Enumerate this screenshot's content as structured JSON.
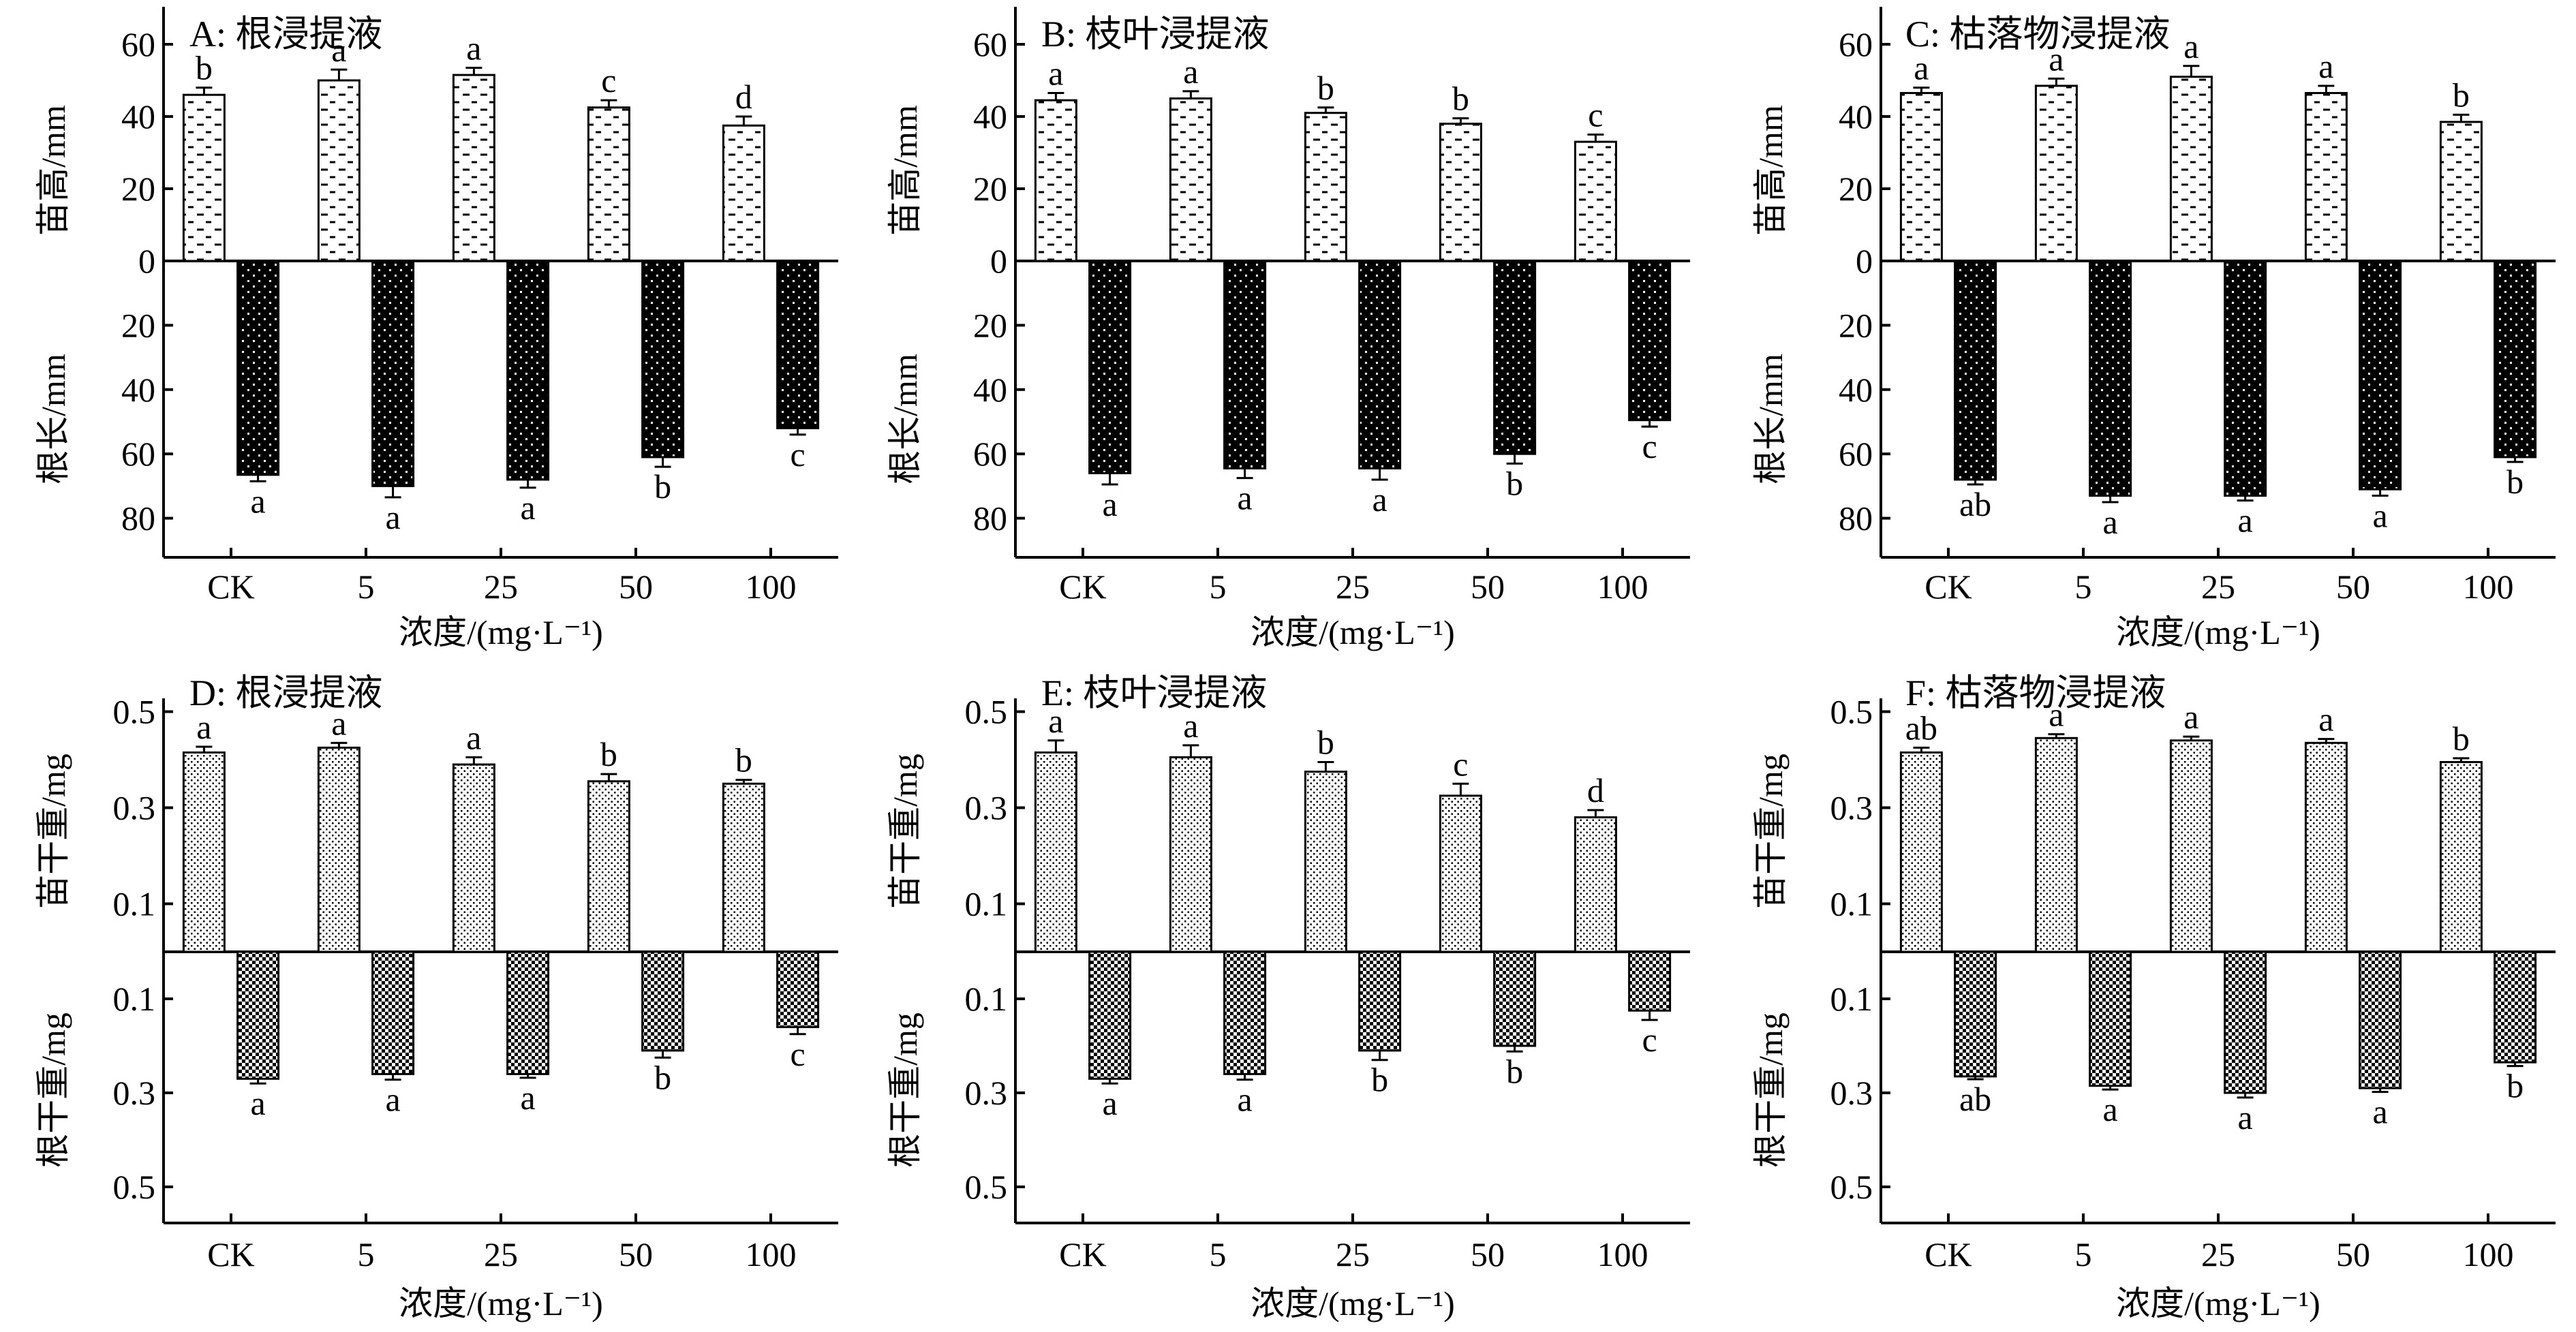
{
  "figure": {
    "categories": [
      "CK",
      "5",
      "25",
      "50",
      "100"
    ],
    "xlabel": "浓度/(mg·L⁻¹)"
  },
  "chart_data": [
    {
      "id": "A",
      "type": "bar",
      "title": "A: 根浸提液",
      "row": "length",
      "categories": [
        "CK",
        "5",
        "25",
        "50",
        "100"
      ],
      "xlabel": "浓度/(mg·L⁻¹)",
      "top": {
        "ylabel": "苗高/mm",
        "values": [
          46,
          50,
          51.5,
          42.5,
          37.5
        ],
        "errors": [
          2,
          3,
          2,
          2,
          2.5
        ],
        "letters": [
          "b",
          "a",
          "a",
          "c",
          "d"
        ],
        "ticks": [
          0,
          20,
          40,
          60
        ],
        "ylim": [
          0,
          70
        ]
      },
      "bottom": {
        "ylabel": "根长/mm",
        "values": [
          66.5,
          70,
          68,
          61,
          52
        ],
        "errors": [
          2,
          3.5,
          2.5,
          3,
          2
        ],
        "letters": [
          "a",
          "a",
          "a",
          "b",
          "c"
        ],
        "ticks": [
          20,
          40,
          60,
          80
        ],
        "ylim": [
          0,
          90
        ]
      }
    },
    {
      "id": "B",
      "type": "bar",
      "title": "B: 枝叶浸提液",
      "row": "length",
      "categories": [
        "CK",
        "5",
        "25",
        "50",
        "100"
      ],
      "xlabel": "浓度/(mg·L⁻¹)",
      "top": {
        "ylabel": "苗高/mm",
        "values": [
          44.5,
          45,
          41,
          38,
          33
        ],
        "errors": [
          2,
          2,
          1.5,
          1.5,
          2
        ],
        "letters": [
          "a",
          "a",
          "b",
          "b",
          "c"
        ],
        "ticks": [
          0,
          20,
          40,
          60
        ],
        "ylim": [
          0,
          70
        ]
      },
      "bottom": {
        "ylabel": "根长/mm",
        "values": [
          66,
          64.5,
          64.5,
          60,
          49.5
        ],
        "errors": [
          3.5,
          3,
          3.5,
          3,
          2
        ],
        "letters": [
          "a",
          "a",
          "a",
          "b",
          "c"
        ],
        "ticks": [
          20,
          40,
          60,
          80
        ],
        "ylim": [
          0,
          90
        ]
      }
    },
    {
      "id": "C",
      "type": "bar",
      "title": "C: 枯落物浸提液",
      "row": "length",
      "categories": [
        "CK",
        "5",
        "25",
        "50",
        "100"
      ],
      "xlabel": "浓度/(mg·L⁻¹)",
      "top": {
        "ylabel": "苗高/mm",
        "values": [
          46.5,
          48.5,
          51,
          46.5,
          38.5
        ],
        "errors": [
          1.5,
          2,
          3,
          2,
          2
        ],
        "letters": [
          "a",
          "a",
          "a",
          "a",
          "b"
        ],
        "ticks": [
          0,
          20,
          40,
          60
        ],
        "ylim": [
          0,
          70
        ]
      },
      "bottom": {
        "ylabel": "根长/mm",
        "values": [
          68,
          73,
          73,
          71,
          61
        ],
        "errors": [
          1.5,
          2,
          1.5,
          2,
          1.5
        ],
        "letters": [
          "ab",
          "a",
          "a",
          "a",
          "b"
        ],
        "ticks": [
          20,
          40,
          60,
          80
        ],
        "ylim": [
          0,
          90
        ]
      }
    },
    {
      "id": "D",
      "type": "bar",
      "title": "D: 根浸提液",
      "row": "weight",
      "categories": [
        "CK",
        "5",
        "25",
        "50",
        "100"
      ],
      "xlabel": "浓度/(mg·L⁻¹)",
      "top": {
        "ylabel": "苗干重/mg",
        "values": [
          0.415,
          0.425,
          0.39,
          0.355,
          0.35
        ],
        "errors": [
          0.012,
          0.01,
          0.015,
          0.015,
          0.008
        ],
        "letters": [
          "a",
          "a",
          "a",
          "b",
          "b"
        ],
        "ticks": [
          0.1,
          0.3,
          0.5
        ],
        "tick_labels": [
          "0.1",
          "0.3",
          "0.5"
        ],
        "ylim": [
          0,
          0.55
        ]
      },
      "bottom": {
        "ylabel": "根干重/mg",
        "values": [
          0.27,
          0.26,
          0.26,
          0.21,
          0.16
        ],
        "errors": [
          0.01,
          0.012,
          0.008,
          0.015,
          0.015
        ],
        "letters": [
          "a",
          "a",
          "a",
          "b",
          "c"
        ],
        "ticks": [
          0.1,
          0.3,
          0.5
        ],
        "tick_labels": [
          "0.1",
          "0.3",
          "0.5"
        ],
        "ylim": [
          0,
          0.55
        ]
      }
    },
    {
      "id": "E",
      "type": "bar",
      "title": "E: 枝叶浸提液",
      "row": "weight",
      "categories": [
        "CK",
        "5",
        "25",
        "50",
        "100"
      ],
      "xlabel": "浓度/(mg·L⁻¹)",
      "top": {
        "ylabel": "苗干重/mg",
        "values": [
          0.415,
          0.405,
          0.375,
          0.325,
          0.28
        ],
        "errors": [
          0.025,
          0.025,
          0.02,
          0.025,
          0.015
        ],
        "letters": [
          "a",
          "a",
          "b",
          "c",
          "d"
        ],
        "ticks": [
          0.1,
          0.3,
          0.5
        ],
        "tick_labels": [
          "0.1",
          "0.3",
          "0.5"
        ],
        "ylim": [
          0,
          0.55
        ]
      },
      "bottom": {
        "ylabel": "根干重/mg",
        "values": [
          0.27,
          0.26,
          0.21,
          0.2,
          0.125
        ],
        "errors": [
          0.01,
          0.012,
          0.02,
          0.012,
          0.02
        ],
        "letters": [
          "a",
          "a",
          "b",
          "b",
          "c"
        ],
        "ticks": [
          0.1,
          0.3,
          0.5
        ],
        "tick_labels": [
          "0.1",
          "0.3",
          "0.5"
        ],
        "ylim": [
          0,
          0.55
        ]
      }
    },
    {
      "id": "F",
      "type": "bar",
      "title": "F: 枯落物浸提液",
      "row": "weight",
      "categories": [
        "CK",
        "5",
        "25",
        "50",
        "100"
      ],
      "xlabel": "浓度/(mg·L⁻¹)",
      "top": {
        "ylabel": "苗干重/mg",
        "values": [
          0.415,
          0.445,
          0.44,
          0.435,
          0.395
        ],
        "errors": [
          0.01,
          0.008,
          0.008,
          0.008,
          0.008
        ],
        "letters": [
          "ab",
          "a",
          "a",
          "a",
          "b"
        ],
        "ticks": [
          0.1,
          0.3,
          0.5
        ],
        "tick_labels": [
          "0.1",
          "0.3",
          "0.5"
        ],
        "ylim": [
          0,
          0.55
        ]
      },
      "bottom": {
        "ylabel": "根干重/mg",
        "values": [
          0.265,
          0.285,
          0.3,
          0.29,
          0.235
        ],
        "errors": [
          0.006,
          0.008,
          0.01,
          0.008,
          0.008
        ],
        "letters": [
          "ab",
          "a",
          "a",
          "a",
          "b"
        ],
        "ticks": [
          0.1,
          0.3,
          0.5
        ],
        "tick_labels": [
          "0.1",
          "0.3",
          "0.5"
        ],
        "ylim": [
          0,
          0.55
        ]
      }
    }
  ]
}
